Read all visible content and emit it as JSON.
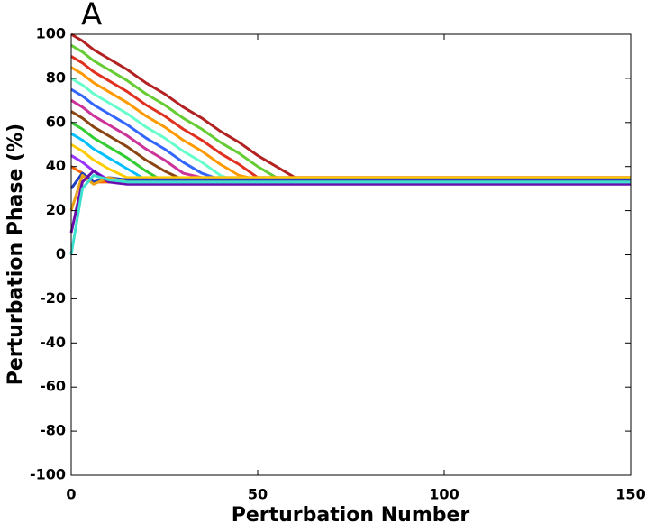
{
  "chart_data": {
    "type": "line",
    "panel_label": "A",
    "xlabel": "Perturbation Number",
    "ylabel": "Perturbation Phase (%)",
    "xlim": [
      0,
      150
    ],
    "ylim": [
      -100,
      100
    ],
    "xticks": [
      0,
      50,
      100,
      150
    ],
    "yticks": [
      -100,
      -80,
      -60,
      -40,
      -20,
      0,
      20,
      40,
      60,
      80,
      100
    ],
    "grid": false,
    "x": [
      0,
      3,
      6,
      10,
      15,
      20,
      25,
      30,
      35,
      40,
      45,
      50,
      55,
      60,
      65,
      150
    ],
    "series": [
      {
        "color": "#b22222",
        "values": [
          100,
          97,
          93,
          89,
          84,
          78,
          73,
          67,
          62,
          56,
          51,
          45,
          40,
          35,
          35,
          35
        ]
      },
      {
        "color": "#66cc33",
        "values": [
          95,
          92,
          88,
          84,
          79,
          73,
          68,
          62,
          57,
          51,
          46,
          40,
          35,
          34,
          34,
          34
        ]
      },
      {
        "color": "#e03020",
        "values": [
          90,
          87,
          83,
          79,
          74,
          68,
          63,
          57,
          52,
          46,
          41,
          35,
          35,
          35,
          35,
          35
        ]
      },
      {
        "color": "#ff9900",
        "values": [
          85,
          82,
          78,
          74,
          69,
          63,
          58,
          52,
          47,
          41,
          36,
          34,
          34,
          34,
          34,
          34
        ]
      },
      {
        "color": "#66ffcc",
        "values": [
          80,
          77,
          73,
          69,
          64,
          58,
          53,
          47,
          42,
          36,
          33,
          33,
          33,
          33,
          33,
          33
        ]
      },
      {
        "color": "#3366ff",
        "values": [
          75,
          72,
          68,
          64,
          59,
          53,
          48,
          42,
          37,
          34,
          34,
          34,
          34,
          34,
          34,
          34
        ]
      },
      {
        "color": "#cc3399",
        "values": [
          70,
          67,
          63,
          59,
          54,
          48,
          43,
          37,
          35,
          35,
          35,
          35,
          35,
          35,
          35,
          35
        ]
      },
      {
        "color": "#8b4513",
        "values": [
          65,
          62,
          58,
          54,
          49,
          43,
          38,
          34,
          34,
          34,
          34,
          34,
          34,
          34,
          34,
          34
        ]
      },
      {
        "color": "#33cc33",
        "values": [
          60,
          57,
          53,
          49,
          44,
          38,
          33,
          33,
          33,
          33,
          33,
          33,
          33,
          33,
          33,
          33
        ]
      },
      {
        "color": "#00bfff",
        "values": [
          55,
          52,
          48,
          44,
          39,
          34,
          34,
          34,
          34,
          34,
          34,
          34,
          34,
          34,
          34,
          34
        ]
      },
      {
        "color": "#ffcc00",
        "values": [
          50,
          47,
          43,
          39,
          35,
          35,
          35,
          35,
          35,
          35,
          35,
          35,
          35,
          35,
          35,
          35
        ]
      },
      {
        "color": "#9933ff",
        "values": [
          45,
          42,
          38,
          34,
          34,
          34,
          34,
          34,
          34,
          34,
          34,
          34,
          34,
          34,
          34,
          34
        ]
      },
      {
        "color": "#ff6600",
        "values": [
          40,
          37,
          33,
          33,
          33,
          33,
          33,
          33,
          33,
          33,
          33,
          33,
          33,
          33,
          33,
          33
        ]
      },
      {
        "color": "#1f3fbf",
        "values": [
          30,
          37,
          33,
          35,
          34,
          34,
          34,
          34,
          34,
          34,
          34,
          34,
          34,
          34,
          34,
          34
        ]
      },
      {
        "color": "#e8a317",
        "values": [
          20,
          36,
          32,
          35,
          33,
          33,
          33,
          33,
          33,
          33,
          33,
          33,
          33,
          33,
          33,
          33
        ]
      },
      {
        "color": "#6a0dad",
        "values": [
          10,
          33,
          38,
          33,
          32,
          32,
          32,
          32,
          32,
          32,
          32,
          32,
          32,
          32,
          32,
          32
        ]
      },
      {
        "color": "#40e0d0",
        "values": [
          0,
          30,
          36,
          34,
          33,
          33,
          33,
          33,
          33,
          33,
          33,
          33,
          33,
          33,
          33,
          33
        ]
      }
    ]
  }
}
